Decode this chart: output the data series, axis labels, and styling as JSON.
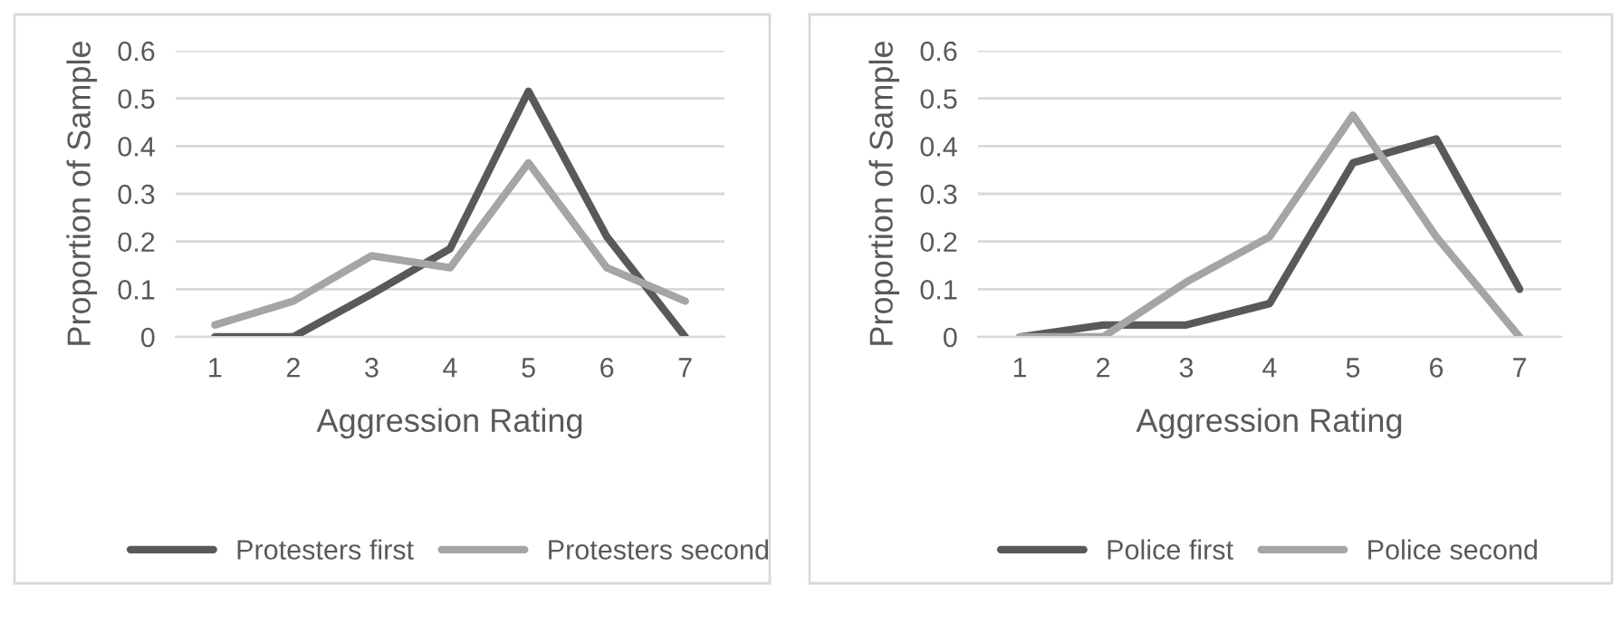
{
  "chart_data": [
    {
      "type": "line",
      "xlabel": "Aggression Rating",
      "ylabel": "Proportion of Sample",
      "categories": [
        "1",
        "2",
        "3",
        "4",
        "5",
        "6",
        "7"
      ],
      "ylim": [
        0,
        0.6
      ],
      "yticks": [
        {
          "value": 0,
          "label": "0"
        },
        0.1,
        0.2,
        0.3,
        0.4,
        0.5,
        0.6
      ],
      "grid": "y",
      "legend": "bottom",
      "marker": "none",
      "line_style": "solid",
      "series": [
        {
          "name": "Protesters first",
          "color": "#595959",
          "values": [
            0,
            0,
            0.09,
            0.185,
            0.515,
            0.21,
            0
          ]
        },
        {
          "name": "Protesters second",
          "color": "#a5a5a5",
          "values": [
            0.025,
            0.075,
            0.17,
            0.145,
            0.365,
            0.145,
            0.075
          ]
        }
      ]
    },
    {
      "type": "line",
      "xlabel": "Aggression Rating",
      "ylabel": "Proportion of Sample",
      "categories": [
        "1",
        "2",
        "3",
        "4",
        "5",
        "6",
        "7"
      ],
      "ylim": [
        0,
        0.6
      ],
      "yticks": [
        {
          "value": 0,
          "label": "0"
        },
        0.1,
        0.2,
        0.3,
        0.4,
        0.5,
        0.6
      ],
      "grid": "y",
      "legend": "bottom",
      "marker": "none",
      "line_style": "solid",
      "series": [
        {
          "name": "Police first",
          "color": "#595959",
          "values": [
            0,
            0.025,
            0.025,
            0.07,
            0.365,
            0.415,
            0.1
          ]
        },
        {
          "name": "Police second",
          "color": "#a5a5a5",
          "values": [
            0,
            0,
            0.115,
            0.21,
            0.465,
            0.21,
            0
          ]
        }
      ]
    }
  ]
}
